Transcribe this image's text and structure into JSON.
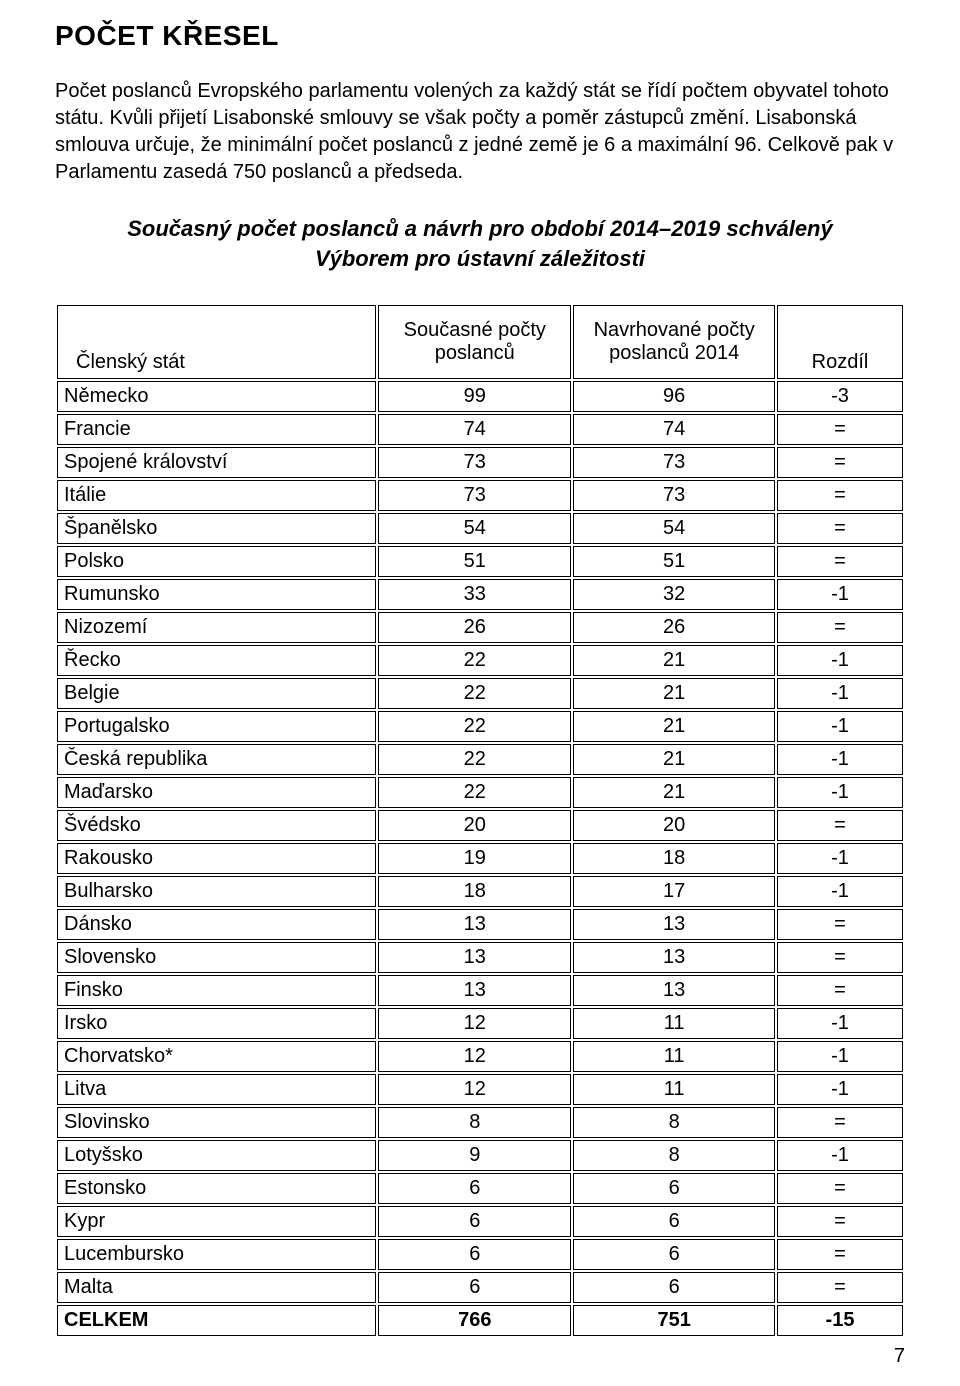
{
  "title": "POČET KŘESEL",
  "intro": "Počet poslanců Evropského parlamentu volených za každý stát se řídí počtem obyvatel tohoto státu. Kvůli přijetí Lisabonské smlouvy se však počty a poměr zástupců změní. Lisabonská smlouva určuje, že minimální počet poslanců z jedné země je 6 a maximální 96. Celkově pak v Parlamentu zasedá 750 poslanců a předseda.",
  "subtitle_line1": "Současný počet poslanců a návrh pro období 2014–2019 schválený",
  "subtitle_line2": "Výborem pro ústavní záležitosti",
  "table": {
    "columns": {
      "state": "Členský stát",
      "current": "Současné počty poslanců",
      "proposed": "Navrhované počty poslanců 2014",
      "diff": "Rozdíl"
    },
    "rows": [
      {
        "state": "Německo",
        "current": "99",
        "proposed": "96",
        "diff": "-3"
      },
      {
        "state": "Francie",
        "current": "74",
        "proposed": "74",
        "diff": "="
      },
      {
        "state": "Spojené království",
        "current": "73",
        "proposed": "73",
        "diff": "="
      },
      {
        "state": "Itálie",
        "current": "73",
        "proposed": "73",
        "diff": "="
      },
      {
        "state": "Španělsko",
        "current": "54",
        "proposed": "54",
        "diff": "="
      },
      {
        "state": "Polsko",
        "current": "51",
        "proposed": "51",
        "diff": "="
      },
      {
        "state": "Rumunsko",
        "current": "33",
        "proposed": "32",
        "diff": "-1"
      },
      {
        "state": "Nizozemí",
        "current": "26",
        "proposed": "26",
        "diff": "="
      },
      {
        "state": "Řecko",
        "current": "22",
        "proposed": "21",
        "diff": "-1"
      },
      {
        "state": "Belgie",
        "current": "22",
        "proposed": "21",
        "diff": "-1"
      },
      {
        "state": "Portugalsko",
        "current": "22",
        "proposed": "21",
        "diff": "-1"
      },
      {
        "state": "Česká republika",
        "current": "22",
        "proposed": "21",
        "diff": "-1"
      },
      {
        "state": "Maďarsko",
        "current": "22",
        "proposed": "21",
        "diff": "-1"
      },
      {
        "state": "Švédsko",
        "current": "20",
        "proposed": "20",
        "diff": "="
      },
      {
        "state": "Rakousko",
        "current": "19",
        "proposed": "18",
        "diff": "-1"
      },
      {
        "state": "Bulharsko",
        "current": "18",
        "proposed": "17",
        "diff": "-1"
      },
      {
        "state": "Dánsko",
        "current": "13",
        "proposed": "13",
        "diff": "="
      },
      {
        "state": "Slovensko",
        "current": "13",
        "proposed": "13",
        "diff": "="
      },
      {
        "state": "Finsko",
        "current": "13",
        "proposed": "13",
        "diff": "="
      },
      {
        "state": "Irsko",
        "current": "12",
        "proposed": "11",
        "diff": "-1"
      },
      {
        "state": "Chorvatsko*",
        "current": "12",
        "proposed": "11",
        "diff": "-1"
      },
      {
        "state": "Litva",
        "current": "12",
        "proposed": "11",
        "diff": "-1"
      },
      {
        "state": "Slovinsko",
        "current": "8",
        "proposed": "8",
        "diff": "="
      },
      {
        "state": "Lotyšsko",
        "current": "9",
        "proposed": "8",
        "diff": "-1"
      },
      {
        "state": "Estonsko",
        "current": "6",
        "proposed": "6",
        "diff": "="
      },
      {
        "state": "Kypr",
        "current": "6",
        "proposed": "6",
        "diff": "="
      },
      {
        "state": "Lucembursko",
        "current": "6",
        "proposed": "6",
        "diff": "="
      },
      {
        "state": "Malta",
        "current": "6",
        "proposed": "6",
        "diff": "="
      }
    ],
    "total": {
      "state": "CELKEM",
      "current": "766",
      "proposed": "751",
      "diff": "-15"
    }
  },
  "page_number": "7"
}
